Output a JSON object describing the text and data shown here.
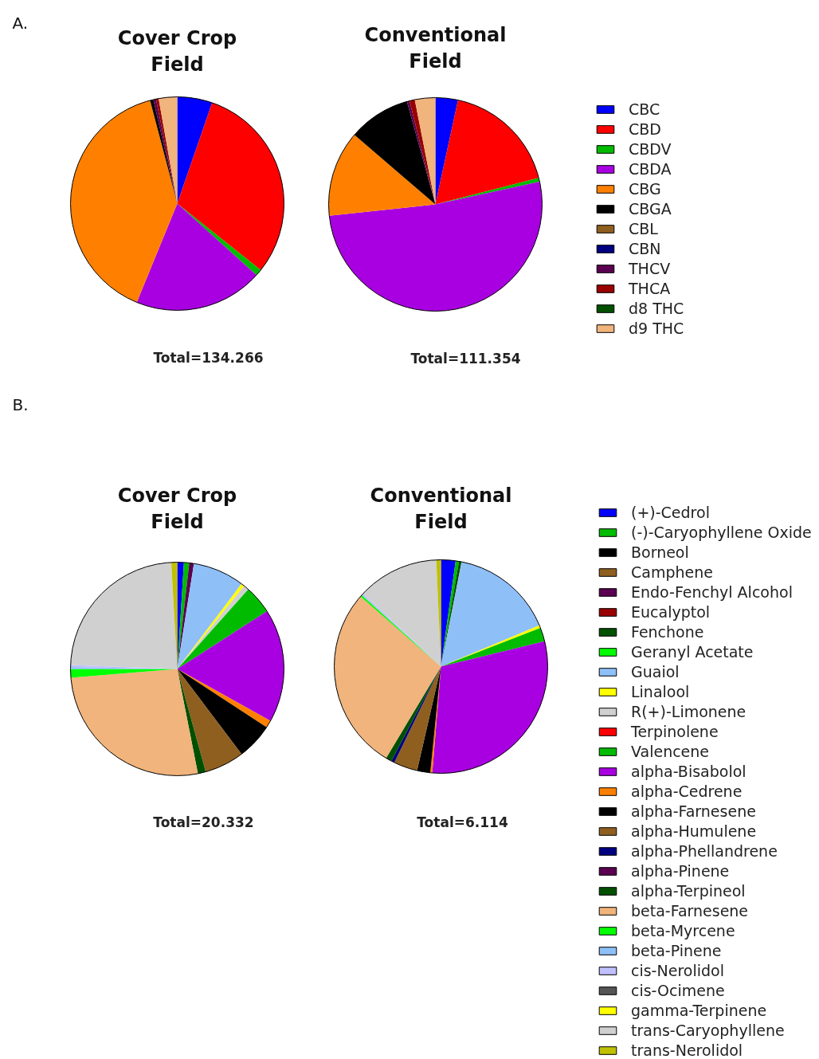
{
  "chart_data": [
    {
      "type": "pie",
      "annotations": [
        "A.",
        "Total=134.266",
        "Total=111.354"
      ],
      "legend": "right",
      "categories": [
        "CBC",
        "CBD",
        "CBDV",
        "CBDA",
        "CBG",
        "CBGA",
        "CBL",
        "CBN",
        "THCV",
        "THCA",
        "d8 THC",
        "d9 THC"
      ],
      "colors": [
        "#0000ff",
        "#ff0000",
        "#00bb00",
        "#a800e0",
        "#ff8000",
        "#000000",
        "#8f5f1f",
        "#000080",
        "#5a0050",
        "#990000",
        "#005000",
        "#f0b47c"
      ],
      "series": [
        {
          "name": "Cover Crop Field",
          "values": [
            5.3,
            30.4,
            1.0,
            19.5,
            39.7,
            0.5,
            0,
            0,
            0.4,
            0.4,
            0,
            2.8
          ]
        },
        {
          "name": "Conventional Field",
          "values": [
            3.4,
            17.6,
            0.6,
            51.7,
            13.0,
            9.4,
            0,
            0,
            0.4,
            0.8,
            0,
            3.1
          ]
        }
      ]
    },
    {
      "type": "pie",
      "annotations": [
        "B.",
        "Total=20.332",
        "Total=6.114"
      ],
      "legend": "right",
      "categories": [
        "(+)-Cedrol",
        "(-)-Caryophyllene Oxide",
        "Borneol",
        "Camphene",
        "Endo-Fenchyl Alcohol",
        "Eucalyptol",
        "Fenchone",
        "Geranyl Acetate",
        "Guaiol",
        "Linalool",
        "R(+)-Limonene",
        "Terpinolene",
        "Valencene",
        "alpha-Bisabolol",
        "alpha-Cedrene",
        "alpha-Farnesene",
        "alpha-Humulene",
        "alpha-Phellandrene",
        "alpha-Pinene",
        "alpha-Terpineol",
        "beta-Farnesene",
        "beta-Myrcene",
        "beta-Pinene",
        "cis-Nerolidol",
        "cis-Ocimene",
        "gamma-Terpinene",
        "trans-Caryophyllene",
        "trans-Nerolidol"
      ],
      "colors": [
        "#0000ff",
        "#00bb00",
        "#000000",
        "#8f5f1f",
        "#5a0050",
        "#990000",
        "#005000",
        "#00ff00",
        "#8fbff7",
        "#ffff00",
        "#d0d0d0",
        "#ff0000",
        "#00bb00",
        "#a800e0",
        "#ff8000",
        "#000000",
        "#8f5f1f",
        "#000080",
        "#5a0050",
        "#005000",
        "#f0b47c",
        "#00ff00",
        "#8fbff7",
        "#c0c0ff",
        "#555555",
        "#ffff00",
        "#d0d0d0",
        "#c0c000"
      ],
      "series": [
        {
          "name": "Cover Crop Field",
          "values": [
            1.0,
            0.8,
            0,
            0,
            0.7,
            0,
            0,
            0,
            7.8,
            0.5,
            0.8,
            0,
            4.3,
            17.2,
            1.1,
            5.5,
            6.0,
            0,
            0,
            1.2,
            26.8,
            1.3,
            0.3,
            0.3,
            0,
            0,
            23.5,
            0.9
          ]
        },
        {
          "name": "Conventional Field",
          "values": [
            2.2,
            0.5,
            0,
            0,
            0,
            0,
            0.4,
            0,
            15.6,
            0.4,
            0,
            0,
            2.1,
            30.1,
            0.3,
            2.0,
            3.6,
            0.5,
            0,
            0.9,
            27.8,
            0.3,
            0,
            0.3,
            0,
            0,
            12.3,
            0.7
          ]
        }
      ]
    }
  ]
}
